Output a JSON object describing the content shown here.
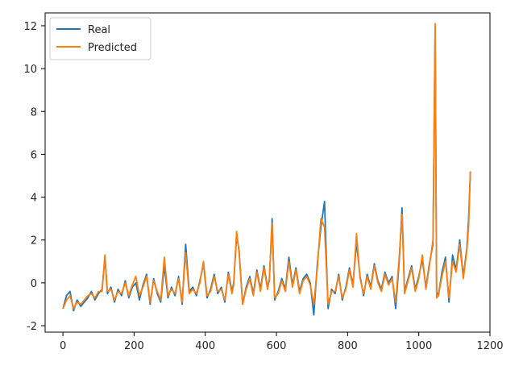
{
  "chart_data": {
    "type": "line",
    "title": "",
    "xlabel": "",
    "ylabel": "",
    "xlim": [
      -50,
      1200
    ],
    "ylim": [
      -2.3,
      12.6
    ],
    "xticks": [
      0,
      200,
      400,
      600,
      800,
      1000,
      1200
    ],
    "yticks": [
      -2,
      0,
      2,
      4,
      6,
      8,
      10,
      12
    ],
    "grid": false,
    "legend_position": "top-left",
    "series": [
      {
        "name": "Real",
        "color": "#1f77b4",
        "x": [
          0,
          10,
          20,
          30,
          40,
          50,
          60,
          70,
          80,
          90,
          100,
          110,
          118,
          125,
          135,
          145,
          155,
          165,
          175,
          185,
          195,
          205,
          215,
          225,
          235,
          245,
          255,
          265,
          275,
          285,
          295,
          305,
          315,
          325,
          335,
          345,
          355,
          365,
          375,
          385,
          395,
          405,
          415,
          425,
          435,
          445,
          455,
          465,
          475,
          480,
          488,
          495,
          505,
          515,
          525,
          535,
          545,
          555,
          565,
          575,
          580,
          588,
          595,
          605,
          615,
          625,
          635,
          645,
          655,
          665,
          675,
          685,
          695,
          705,
          715,
          725,
          735,
          745,
          755,
          765,
          775,
          785,
          795,
          805,
          815,
          825,
          835,
          845,
          855,
          865,
          875,
          885,
          895,
          905,
          915,
          925,
          935,
          945,
          953,
          960,
          970,
          980,
          990,
          1000,
          1010,
          1020,
          1030,
          1040,
          1046,
          1050,
          1055,
          1065,
          1075,
          1085,
          1095,
          1105,
          1115,
          1125,
          1135,
          1140,
          1145
        ],
        "y": [
          -1.2,
          -0.6,
          -0.4,
          -1.3,
          -0.8,
          -1.1,
          -0.9,
          -0.7,
          -0.4,
          -0.8,
          -0.5,
          -0.3,
          1.2,
          -0.5,
          -0.2,
          -0.9,
          -0.3,
          -0.6,
          0.1,
          -0.7,
          -0.2,
          0.0,
          -0.8,
          -0.1,
          0.4,
          -1.0,
          0.2,
          -0.5,
          -0.9,
          0.8,
          -0.7,
          -0.2,
          -0.6,
          0.3,
          -1.0,
          1.8,
          -0.4,
          -0.2,
          -0.6,
          0.1,
          0.9,
          -0.7,
          -0.3,
          0.4,
          -0.5,
          -0.2,
          -0.9,
          0.5,
          -0.4,
          0.0,
          2.2,
          1.5,
          -1.0,
          -0.2,
          0.3,
          -0.5,
          0.6,
          -0.3,
          0.8,
          -0.2,
          0.1,
          3.0,
          -0.8,
          -0.4,
          0.2,
          -0.3,
          1.2,
          -0.1,
          0.7,
          -0.4,
          0.2,
          0.4,
          0.0,
          -1.5,
          0.9,
          2.6,
          3.8,
          -1.2,
          -0.3,
          -0.5,
          0.4,
          -0.8,
          -0.2,
          0.7,
          -0.1,
          1.9,
          0.3,
          -0.6,
          0.4,
          -0.2,
          0.9,
          0.1,
          -0.3,
          0.5,
          0.0,
          0.3,
          -1.2,
          1.0,
          3.5,
          -0.4,
          0.2,
          0.8,
          -0.3,
          0.3,
          1.1,
          -0.2,
          0.9,
          1.8,
          12.0,
          -0.4,
          -0.6,
          0.5,
          1.2,
          -0.9,
          1.3,
          0.6,
          2.0,
          0.3,
          1.6,
          3.0,
          5.2
        ],
        "values_omitted_note": ""
      },
      {
        "name": "Predicted",
        "color": "#ff7f0e",
        "x": [
          0,
          10,
          20,
          30,
          40,
          50,
          60,
          70,
          80,
          90,
          100,
          110,
          118,
          125,
          135,
          145,
          155,
          165,
          175,
          185,
          195,
          205,
          215,
          225,
          235,
          245,
          255,
          265,
          275,
          285,
          295,
          305,
          315,
          325,
          335,
          345,
          355,
          365,
          375,
          385,
          395,
          405,
          415,
          425,
          435,
          445,
          455,
          465,
          475,
          480,
          488,
          495,
          505,
          515,
          525,
          535,
          545,
          555,
          565,
          575,
          580,
          588,
          595,
          605,
          615,
          625,
          635,
          645,
          655,
          665,
          675,
          685,
          695,
          705,
          715,
          725,
          735,
          745,
          755,
          765,
          775,
          785,
          795,
          805,
          815,
          825,
          835,
          845,
          855,
          865,
          875,
          885,
          895,
          905,
          915,
          925,
          935,
          945,
          953,
          960,
          970,
          980,
          990,
          1000,
          1010,
          1020,
          1030,
          1040,
          1046,
          1050,
          1055,
          1065,
          1075,
          1085,
          1095,
          1105,
          1115,
          1125,
          1135,
          1140,
          1145
        ],
        "y": [
          -1.2,
          -0.8,
          -0.6,
          -1.2,
          -0.9,
          -1.0,
          -0.8,
          -0.6,
          -0.5,
          -0.7,
          -0.4,
          -0.4,
          1.3,
          -0.4,
          -0.3,
          -0.8,
          -0.4,
          -0.5,
          0.0,
          -0.6,
          -0.1,
          0.3,
          -0.6,
          -0.2,
          0.3,
          -0.9,
          0.1,
          -0.4,
          -0.8,
          1.2,
          -0.6,
          -0.3,
          -0.5,
          0.2,
          -0.9,
          1.4,
          -0.5,
          -0.3,
          -0.5,
          0.0,
          1.0,
          -0.6,
          -0.4,
          0.3,
          -0.4,
          -0.3,
          -0.8,
          0.4,
          -0.5,
          -0.1,
          2.4,
          1.4,
          -1.0,
          -0.3,
          0.2,
          -0.6,
          0.5,
          -0.4,
          0.7,
          -0.3,
          0.2,
          2.8,
          -0.7,
          -0.5,
          0.1,
          -0.4,
          1.0,
          -0.2,
          0.6,
          -0.5,
          0.1,
          0.3,
          -0.1,
          -1.0,
          0.7,
          3.0,
          2.6,
          -1.0,
          -0.4,
          -0.4,
          0.3,
          -0.7,
          -0.3,
          0.6,
          -0.2,
          2.3,
          0.2,
          -0.5,
          0.3,
          -0.3,
          0.8,
          0.0,
          -0.4,
          0.4,
          -0.1,
          0.2,
          -0.9,
          1.2,
          3.2,
          -0.5,
          0.1,
          0.7,
          -0.4,
          0.2,
          1.3,
          -0.3,
          0.8,
          2.0,
          12.1,
          -0.7,
          -0.6,
          0.3,
          1.0,
          -0.7,
          1.0,
          0.5,
          1.8,
          0.2,
          1.5,
          2.6,
          5.2
        ],
        "values_omitted_note": ""
      }
    ]
  }
}
